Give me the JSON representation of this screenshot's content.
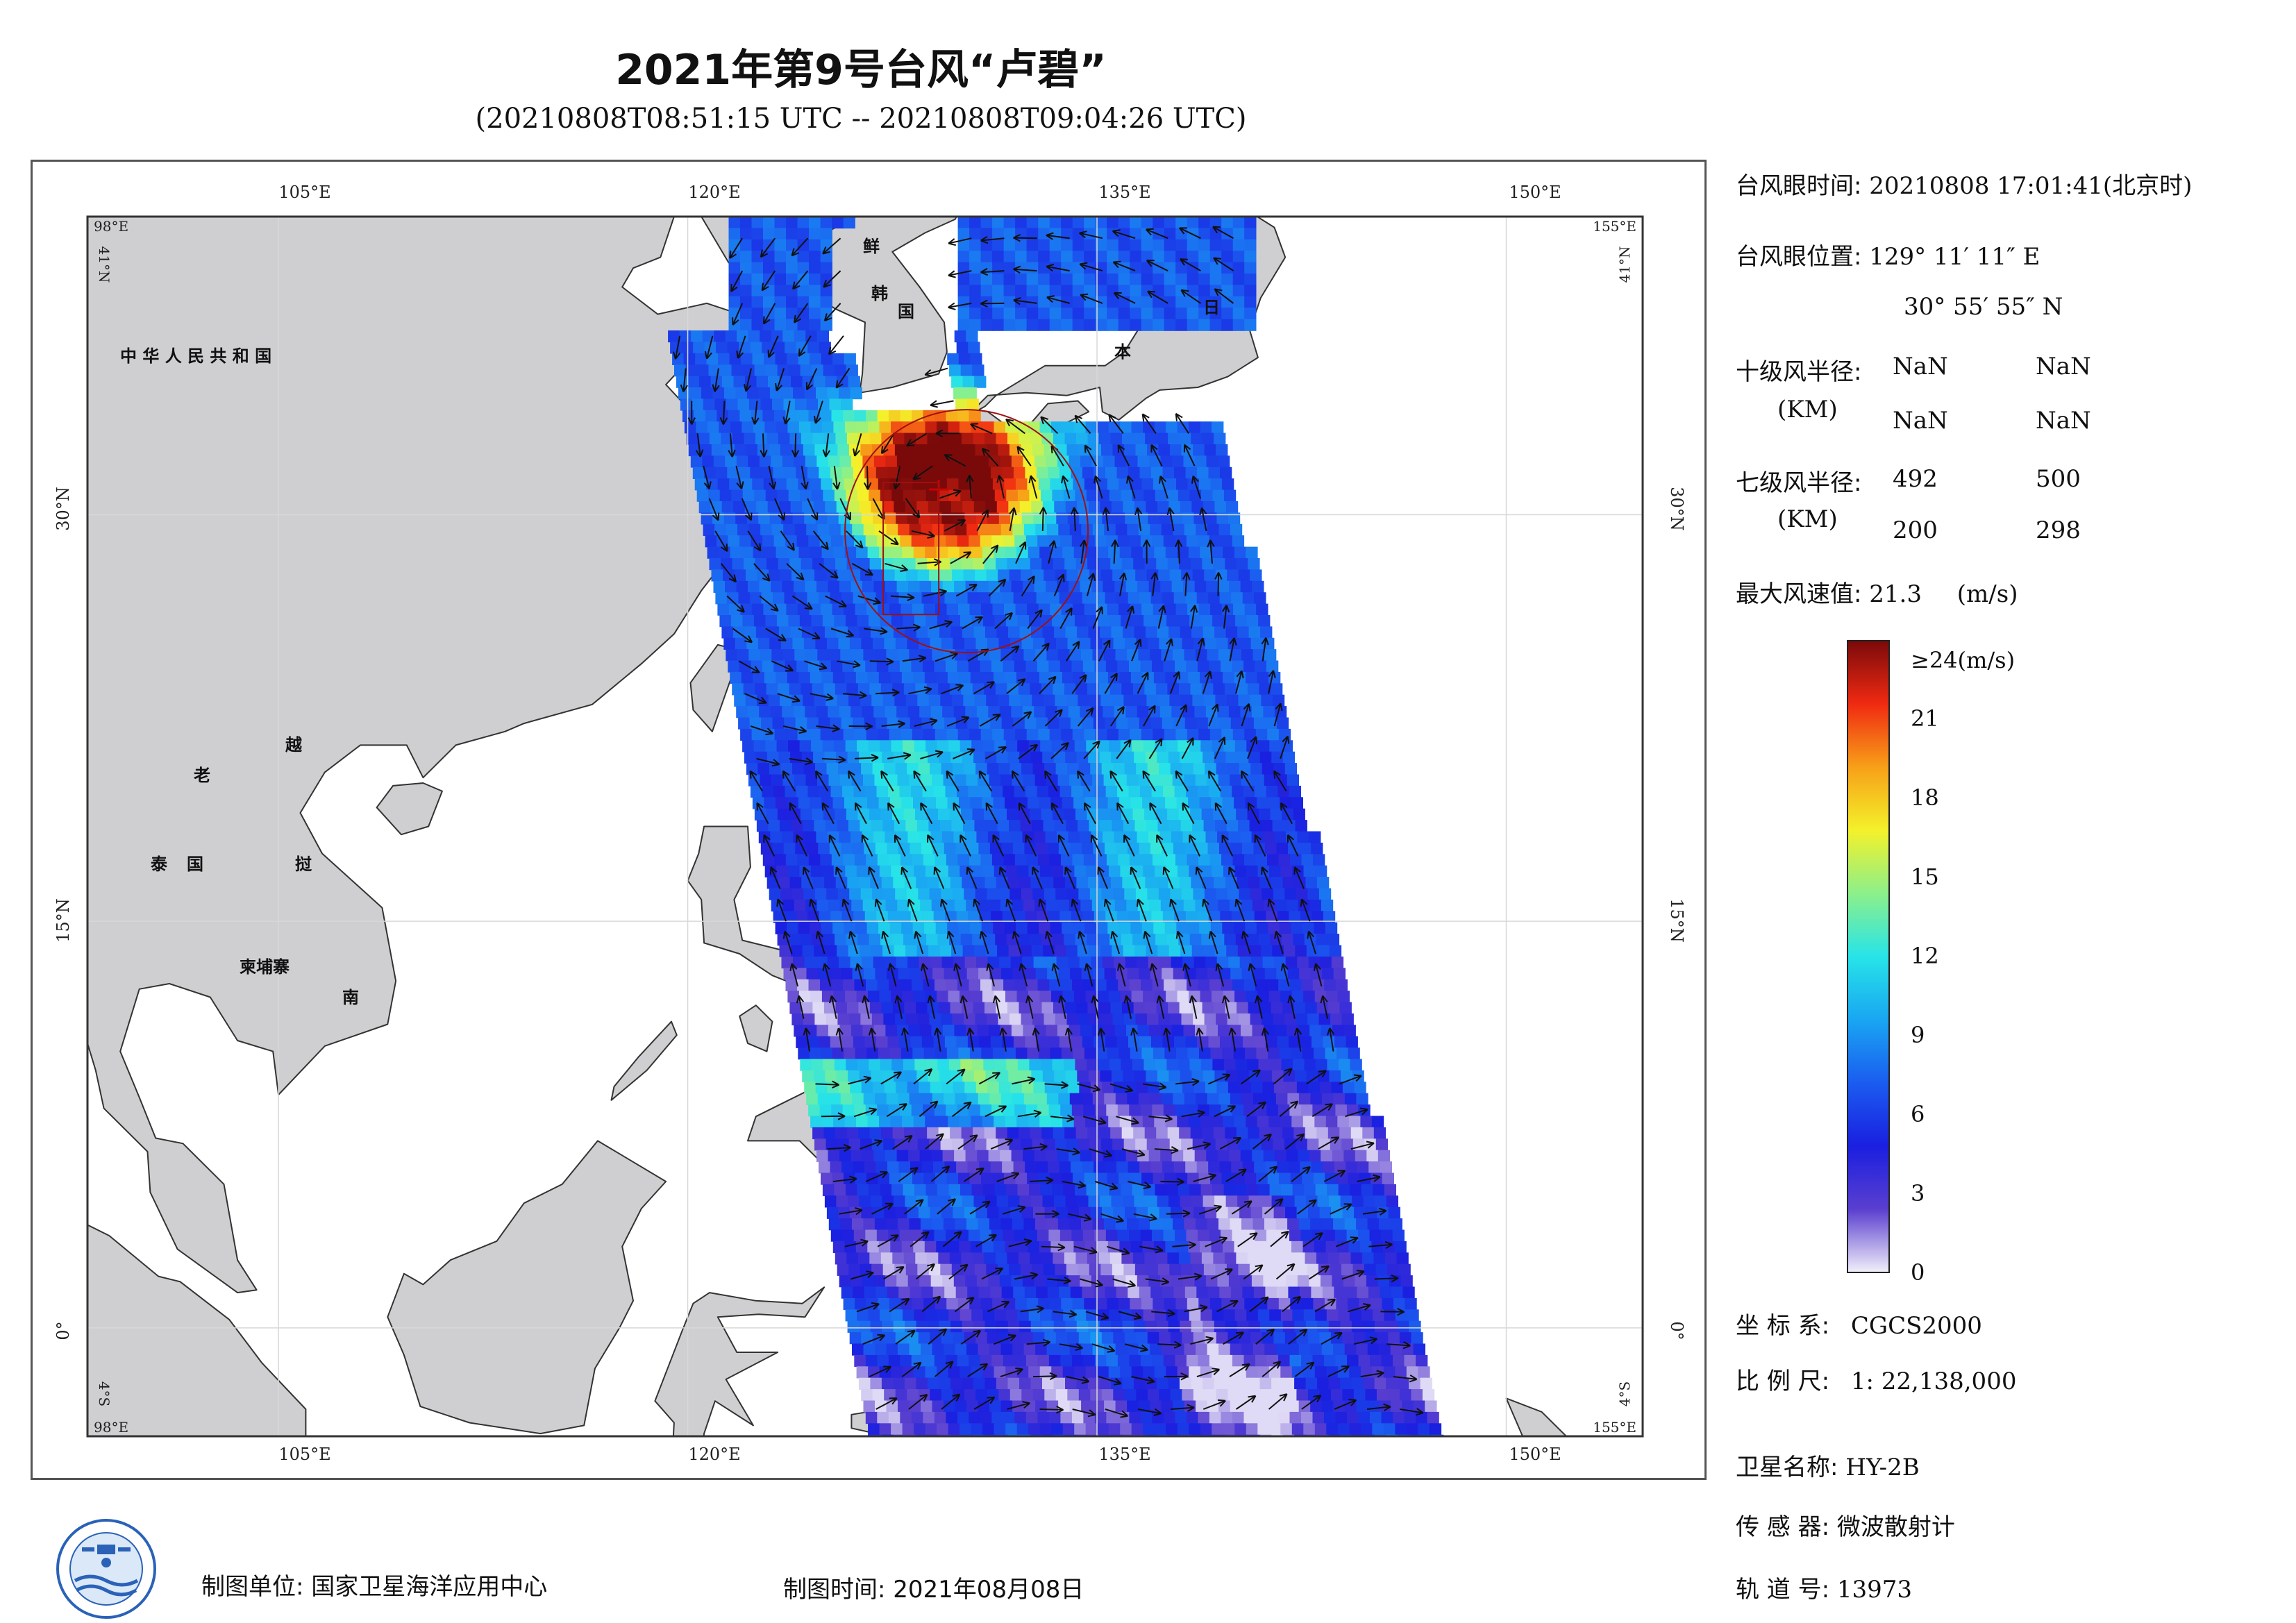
{
  "title": "2021年第9号台风“卢碧”",
  "subtitle": "(20210808T08:51:15 UTC -- 20210808T09:04:26 UTC)",
  "map": {
    "lon_ticks": [
      "105°E",
      "120°E",
      "135°E",
      "150°E"
    ],
    "lat_ticks": [
      "30°N",
      "15°N",
      "0°"
    ],
    "corner_labels": {
      "top_left_lon": "98°E",
      "top_left_lat": "41°N",
      "top_right_lon": "155°E",
      "top_right_lat": "41°N",
      "bottom_left_lon": "98°E",
      "bottom_left_lat": "4°S",
      "bottom_right_lon": "155°E",
      "bottom_right_lat": "4°S"
    },
    "country_labels": {
      "china": "中 华 人 民 共 和 国",
      "korea_n": "鲜",
      "korea_s1": "韩",
      "korea_s2": "国",
      "japan1": "日",
      "japan2": "本",
      "laos": "老",
      "vietnam1": "越",
      "vietnam2": "南",
      "thailand1": "泰",
      "thailand2": "国",
      "laos_th": "挝",
      "cambodia": "柬埔寨"
    },
    "colors": {
      "land": "#cfcfd1",
      "coast": "#333333",
      "arrow": "#111111"
    }
  },
  "panel": {
    "eye_time_label": "台风眼时间:",
    "eye_time_value": "20210808 17:01:41(北京时)",
    "eye_pos_label": "台风眼位置:",
    "eye_lon": "129° 11′ 11″ E",
    "eye_lat": "30° 55′ 55″ N",
    "r10_label": "十级风半径:",
    "r10_unit": "(KM)",
    "r10_values": [
      "NaN",
      "NaN",
      "NaN",
      "NaN"
    ],
    "r7_label": "七级风半径:",
    "r7_unit": "(KM)",
    "r7_values": [
      "492",
      "500",
      "200",
      "298"
    ],
    "max_wind_label": "最大风速值:",
    "max_wind_value": "21.3",
    "max_wind_unit": "(m/s)"
  },
  "colorbar": {
    "top_label": "≥24(m/s)",
    "ticks": [
      "21",
      "18",
      "15",
      "12",
      "9",
      "6",
      "3",
      "0"
    ],
    "tick_values": [
      21,
      18,
      15,
      12,
      9,
      6,
      3,
      0
    ],
    "max": 24,
    "stops": [
      "#f2f0fa",
      "#5a3fcf",
      "#1a1fe0",
      "#1b5cf0",
      "#19a6f2",
      "#27e4e8",
      "#8cf08a",
      "#f4f12a",
      "#f7a018",
      "#f02a12",
      "#7a0a0a"
    ]
  },
  "info": {
    "crs_label": "坐 标 系:",
    "crs_value": "CGCS2000",
    "scale_label": "比 例 尺:",
    "scale_value": "1: 22,138,000",
    "sat_label": "卫星名称:",
    "sat_value": "HY-2B",
    "sensor_label": "传 感 器:",
    "sensor_value": "微波散射计",
    "orbit_label": "轨 道 号:",
    "orbit_value": "13973"
  },
  "footer": {
    "unit_label": "制图单位:",
    "unit_value": "国家卫星海洋应用中心",
    "time_label": "制图时间:",
    "time_value": "2021年08月08日"
  }
}
